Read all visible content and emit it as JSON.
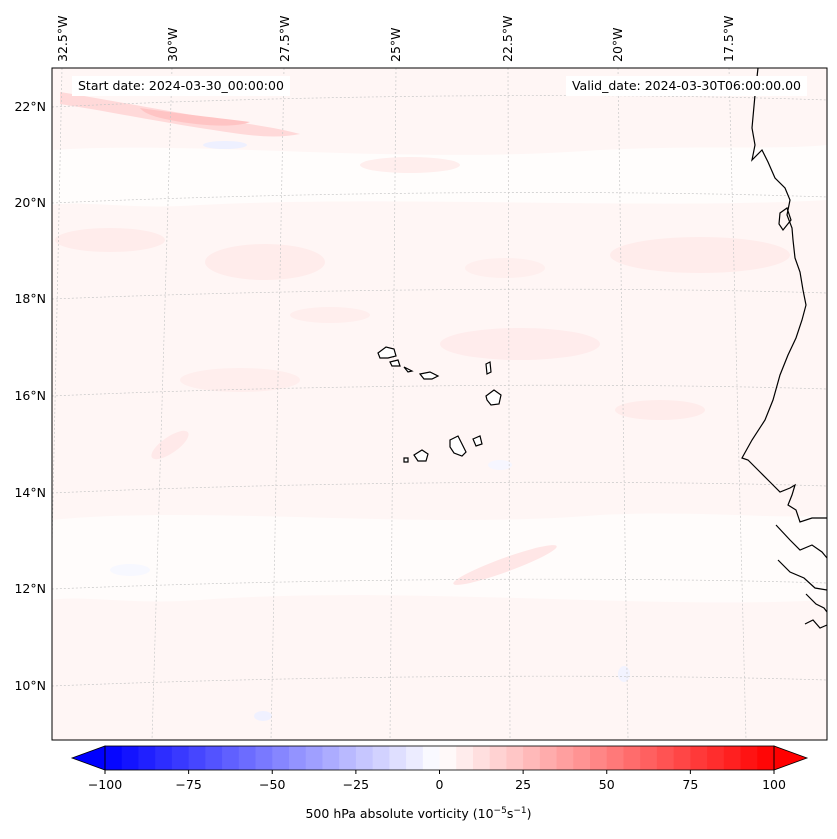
{
  "header": {
    "start_date": "Start date: 2024-03-30_00:00:00",
    "valid_date": "Valid_date: 2024-03-30T06:00:00.00"
  },
  "map": {
    "region": "Cape Verde / West Africa coast",
    "lon_labels": [
      "32.5°W",
      "30°W",
      "27.5°W",
      "25°W",
      "22.5°W",
      "20°W",
      "17.5°W"
    ],
    "lat_labels": [
      "22°N",
      "20°N",
      "18°N",
      "16°N",
      "14°N",
      "12°N",
      "10°N"
    ],
    "gridlines": true
  },
  "colorbar": {
    "title_prefix": "500 hPa absolute vorticity (10",
    "title_exp1": "−5",
    "title_mid": "s",
    "title_exp2": "−1",
    "title_suffix": ")",
    "tick_labels": [
      "−100",
      "−75",
      "−50",
      "−25",
      "0",
      "25",
      "50",
      "75",
      "100"
    ],
    "min": -100,
    "max": 100,
    "colormap": "bwr",
    "extend": "both",
    "colors": {
      "negative": "#0000ff",
      "zero": "#ffffff",
      "positive": "#ff0000"
    }
  }
}
